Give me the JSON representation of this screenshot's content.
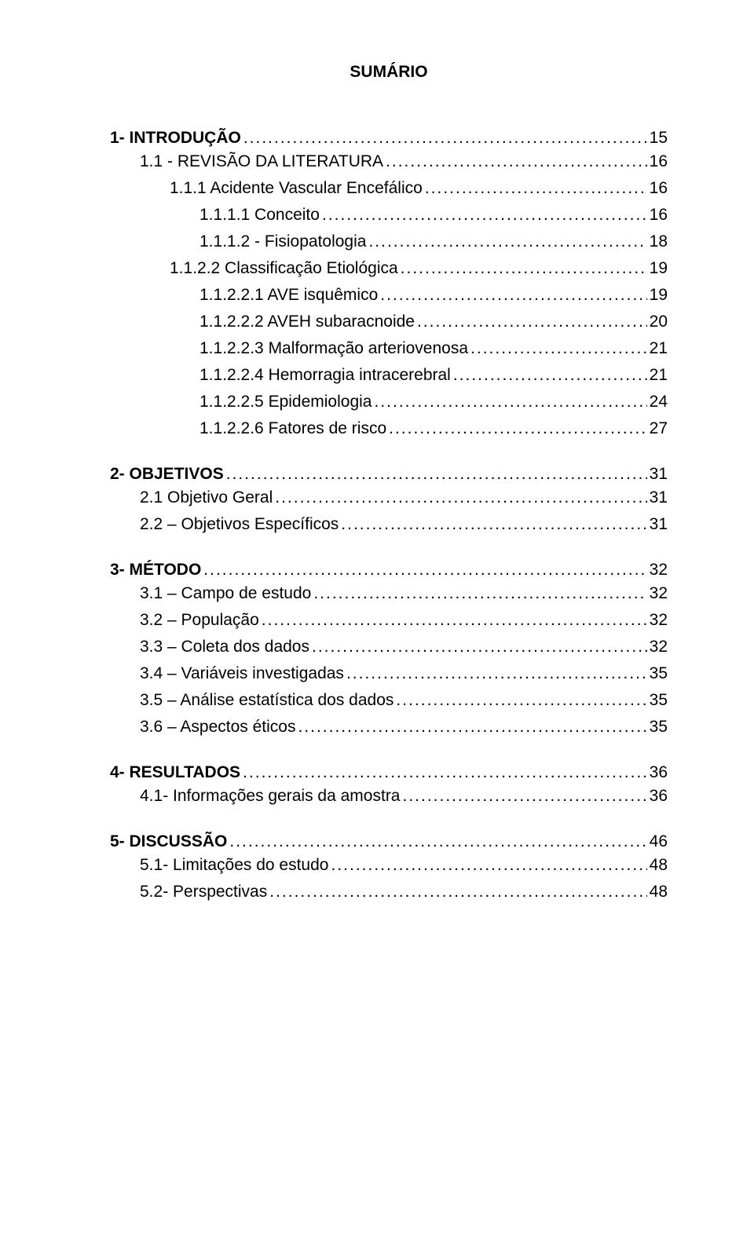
{
  "title": "SUMÁRIO",
  "font_color": "#000000",
  "background_color": "#ffffff",
  "base_fontsize_pt": 16,
  "sections": [
    {
      "head": {
        "label": "1- INTRODUÇÃO",
        "page": "15"
      },
      "entries": [
        {
          "indent": 1,
          "label": "1.1 - REVISÃO DA LITERATURA",
          "page": "16"
        },
        {
          "indent": 2,
          "label": "1.1.1 Acidente Vascular Encefálico",
          "page": "16"
        },
        {
          "indent": 3,
          "label": "1.1.1.1 Conceito",
          "page": "16"
        },
        {
          "indent": 3,
          "label": "1.1.1.2 - Fisiopatologia",
          "page": "18"
        },
        {
          "indent": 2,
          "label": "1.1.2.2 Classificação Etiológica",
          "page": "19"
        },
        {
          "indent": 3,
          "label": "1.1.2.2.1 AVE isquêmico",
          "page": "19"
        },
        {
          "indent": 3,
          "label": "1.1.2.2.2 AVEH subaracnoide",
          "page": "20"
        },
        {
          "indent": 3,
          "label": "1.1.2.2.3 Malformação arteriovenosa",
          "page": "21"
        },
        {
          "indent": 3,
          "label": "1.1.2.2.4 Hemorragia intracerebral",
          "page": "21"
        },
        {
          "indent": 3,
          "label": "1.1.2.2.5 Epidemiologia",
          "page": "24"
        },
        {
          "indent": 3,
          "label": "1.1.2.2.6  Fatores de risco",
          "page": "27"
        }
      ]
    },
    {
      "head": {
        "label": "2- OBJETIVOS",
        "page": "31"
      },
      "entries": [
        {
          "indent": 1,
          "label": "2.1 Objetivo Geral",
          "page": "31"
        },
        {
          "indent": 1,
          "label": "2.2 – Objetivos Específicos",
          "page": "31"
        }
      ]
    },
    {
      "head": {
        "label": "3- MÉTODO",
        "page": "32"
      },
      "entries": [
        {
          "indent": 1,
          "label": "3.1 – Campo de estudo",
          "page": "32"
        },
        {
          "indent": 1,
          "label": "3.2 – População",
          "page": "32"
        },
        {
          "indent": 1,
          "label": "3.3 – Coleta dos dados",
          "page": "32"
        },
        {
          "indent": 1,
          "label": "3.4 – Variáveis investigadas",
          "page": "35"
        },
        {
          "indent": 1,
          "label": "3.5 – Análise estatística dos dados",
          "page": "35"
        },
        {
          "indent": 1,
          "label": "3.6 – Aspectos éticos",
          "page": "35"
        }
      ]
    },
    {
      "head": {
        "label": "4- RESULTADOS",
        "page": "36"
      },
      "entries": [
        {
          "indent": 1,
          "label": "4.1- Informações gerais da amostra",
          "page": "36"
        }
      ]
    },
    {
      "head": {
        "label": "5- DISCUSSÃO",
        "page": "46"
      },
      "entries": [
        {
          "indent": 1,
          "label": "5.1- Limitações do estudo",
          "page": "48"
        },
        {
          "indent": 1,
          "label": "5.2- Perspectivas",
          "page": "48"
        }
      ]
    }
  ]
}
